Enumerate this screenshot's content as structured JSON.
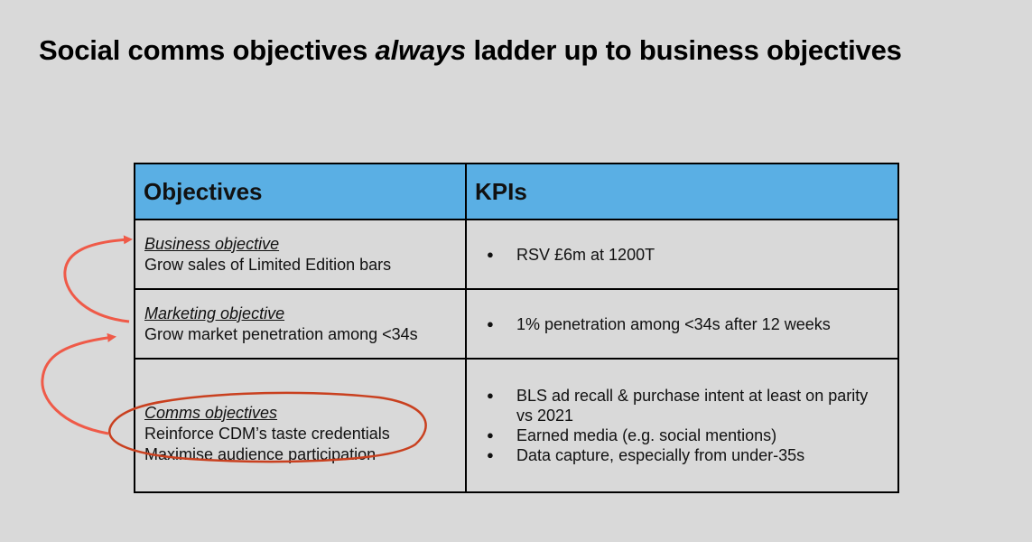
{
  "title": {
    "prefix": "Social comms objectives ",
    "emphasis": "always",
    "suffix": " ladder up to business objectives"
  },
  "table": {
    "headers": [
      "Objectives",
      "KPIs"
    ],
    "rows": [
      {
        "objective_heading": "Business objective",
        "objective_description": "Grow sales of Limited Edition bars",
        "kpis": [
          "RSV £6m at 1200T"
        ]
      },
      {
        "objective_heading": "Marketing objective",
        "objective_description": "Grow market penetration among <34s",
        "kpis": [
          "1% penetration among <34s after 12 weeks"
        ]
      },
      {
        "objective_heading": "Comms objectives",
        "objective_description": "Reinforce CDM’s taste credentials",
        "objective_description_2": "Maximise audience participation",
        "kpis": [
          "BLS ad recall & purchase intent at least on parity vs 2021",
          "Earned media (e.g. social mentions)",
          "Data capture, especially from under-35s"
        ]
      }
    ]
  },
  "annotations": {
    "arrow_color": "#ef5a48",
    "circle_color": "#c9401f",
    "icons": [
      "curved-arrow",
      "curved-arrow",
      "hand-drawn-circle"
    ]
  }
}
